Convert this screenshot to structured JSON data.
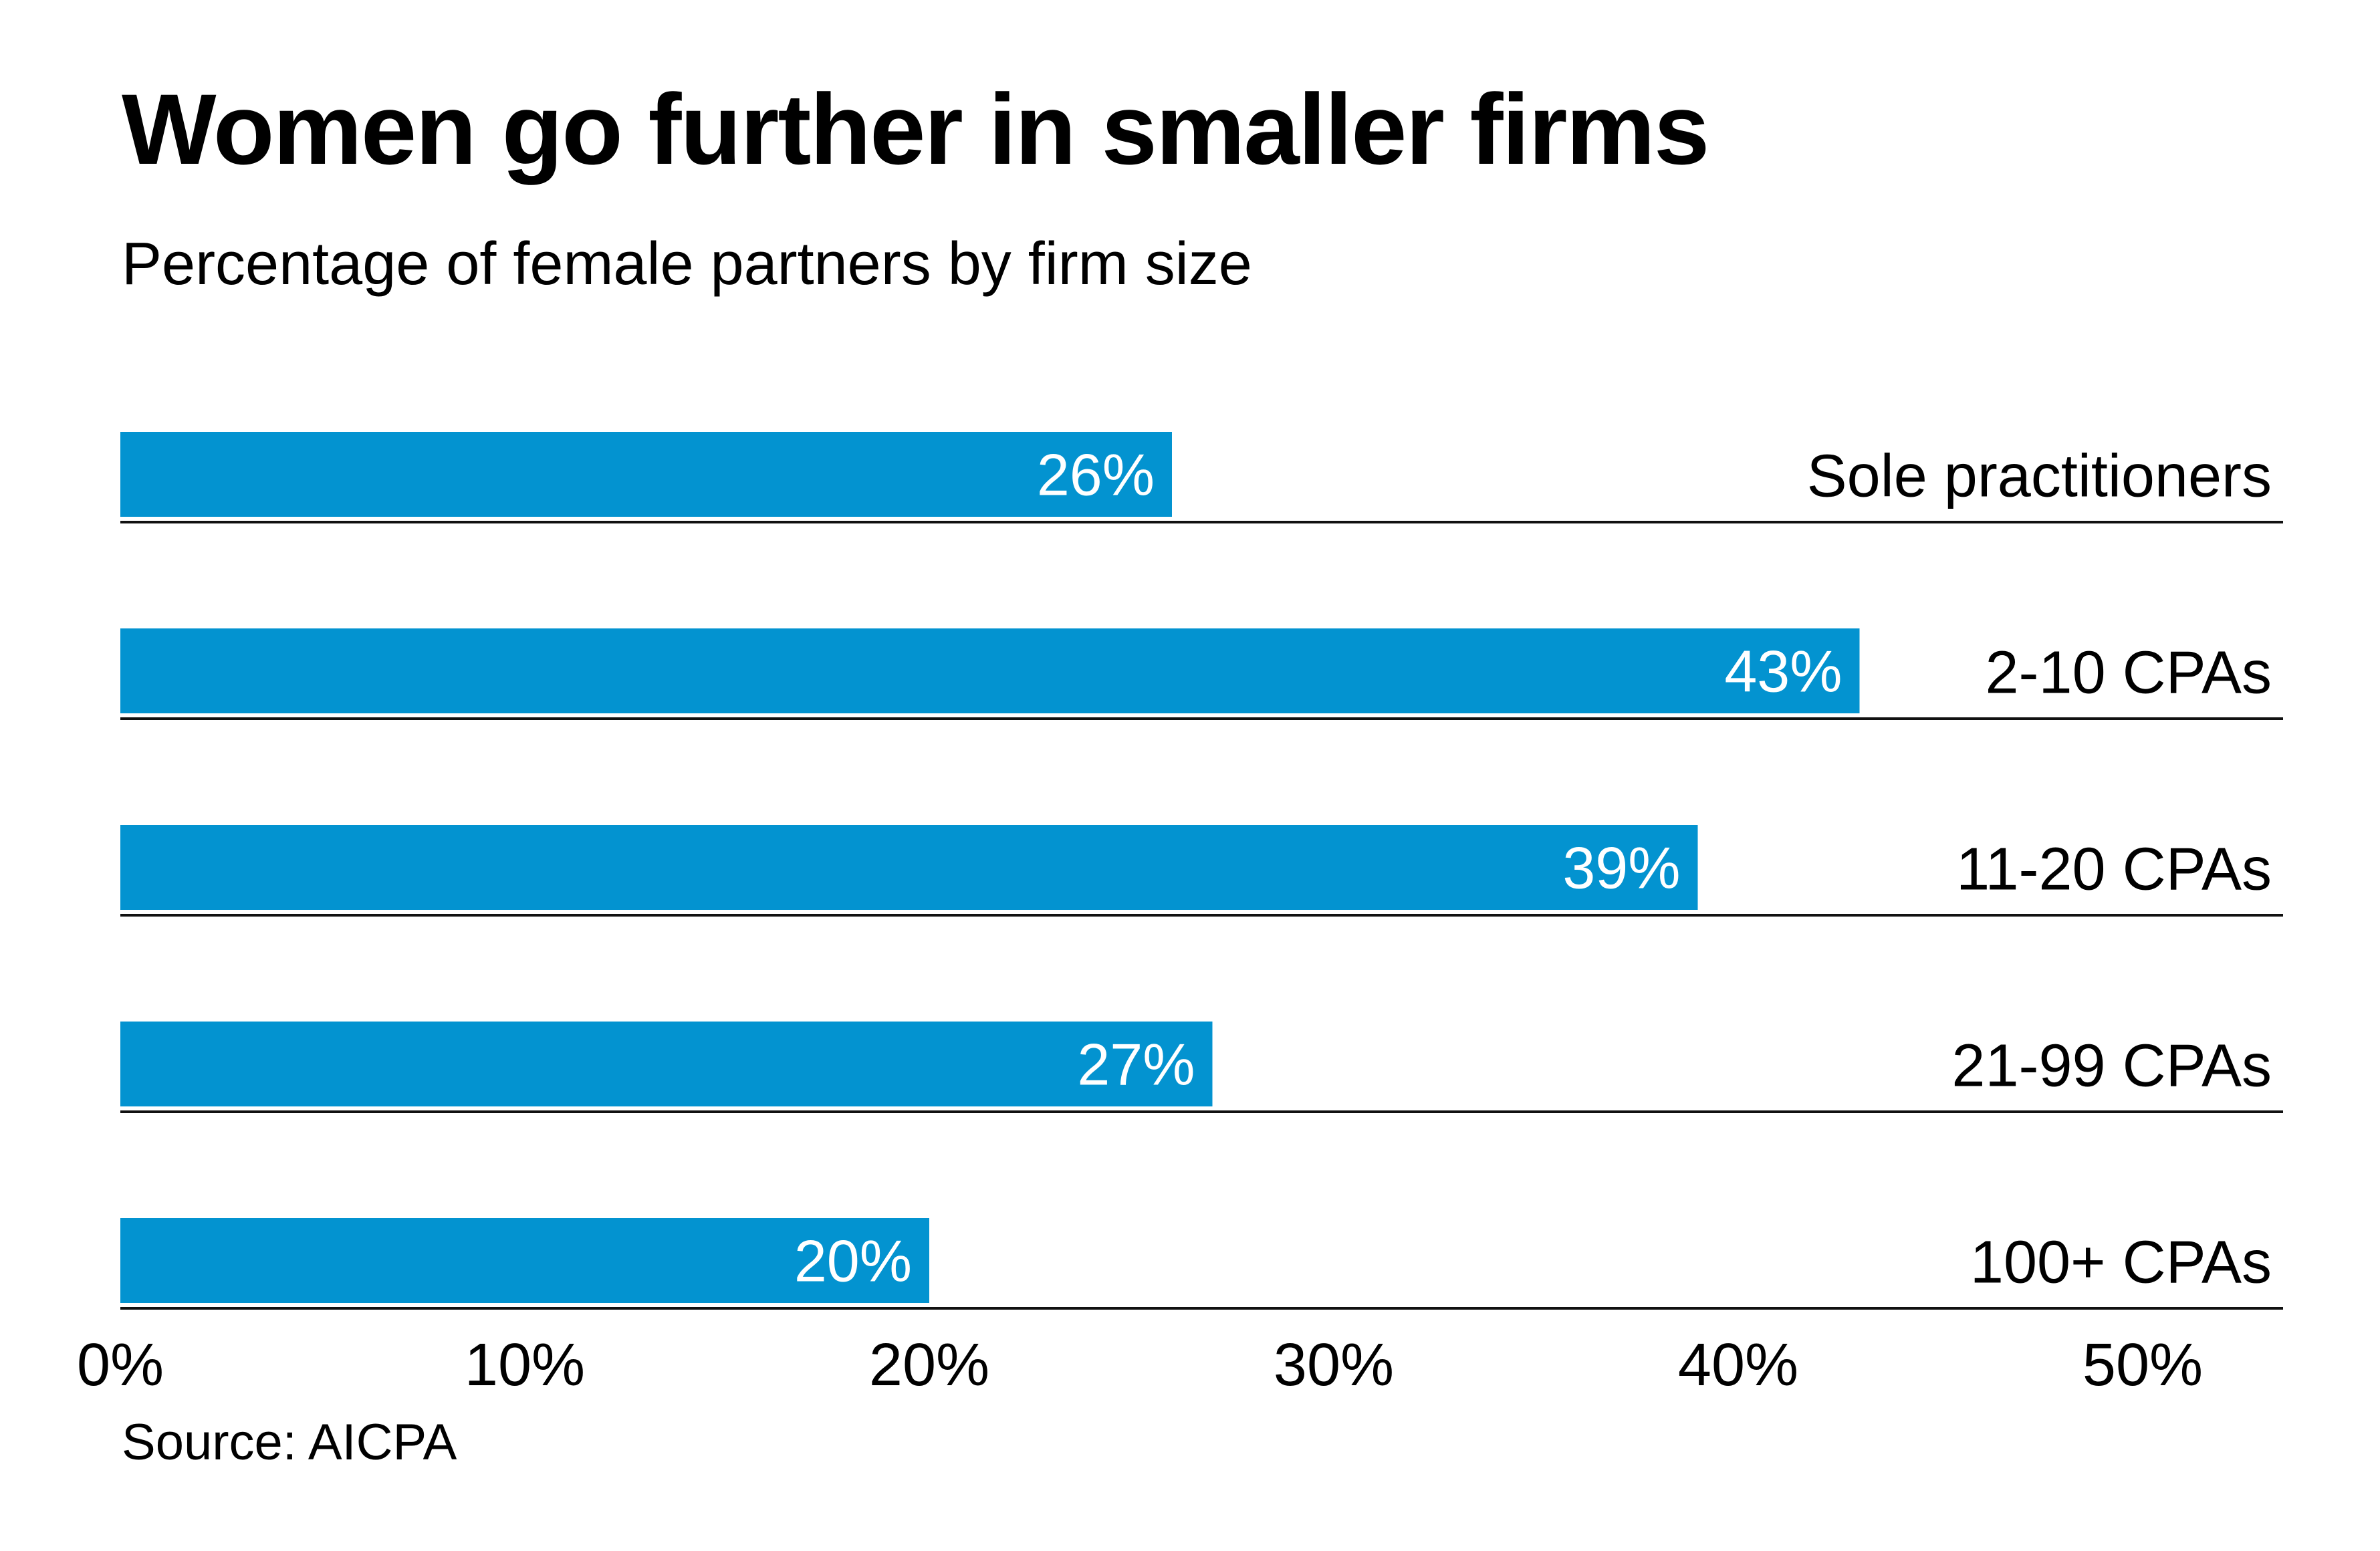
{
  "header": {
    "title": "Women go further in smaller firms",
    "subtitle": "Percentage of female partners by firm size"
  },
  "footer": {
    "source": "Source: AICPA"
  },
  "colors": {
    "bar": "#0393d0",
    "bar_label": "#ffffff",
    "text": "#000000"
  },
  "chart_data": {
    "type": "bar",
    "orientation": "horizontal",
    "title": "Women go further in smaller firms",
    "subtitle": "Percentage of female partners by firm size",
    "categories": [
      "Sole practitioners",
      "2-10 CPAs",
      "11-20 CPAs",
      "21-99 CPAs",
      "100+ CPAs"
    ],
    "values": [
      26,
      43,
      39,
      27,
      20
    ],
    "data_labels": [
      "26%",
      "43%",
      "39%",
      "27%",
      "20%"
    ],
    "xlabel": "",
    "ylabel": "",
    "xlim": [
      0,
      53
    ],
    "x_ticks": [
      0,
      10,
      20,
      30,
      40,
      50
    ],
    "x_tick_labels": [
      "0%",
      "10%",
      "20%",
      "30%",
      "40%",
      "50%"
    ],
    "category_label_placement": "right",
    "grid": false,
    "legend": "none",
    "source": "Source: AICPA"
  }
}
